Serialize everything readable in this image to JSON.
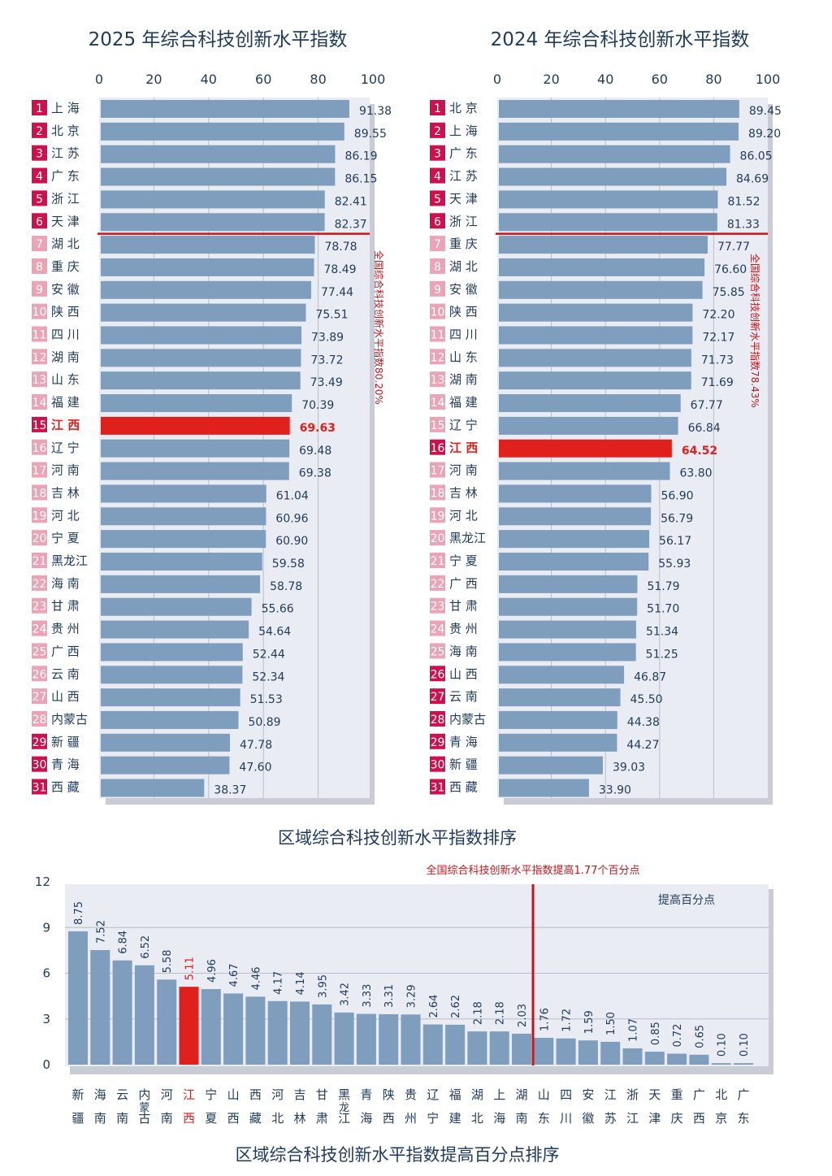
{
  "colors": {
    "bar": "#7f9dbd",
    "highlight": "#e0201c",
    "panel": "#e9ecf2",
    "rank_top": "#d0104c",
    "rank_mid": "#eda3b6",
    "text": "#1f3b5c",
    "redline": "#c4161c"
  },
  "chart_data": [
    {
      "type": "bar",
      "orientation": "horizontal",
      "title": "2025 年综合科技创新水平指数",
      "xlim": [
        0,
        100
      ],
      "xticks": [
        "0",
        "20",
        "40",
        "60",
        "80",
        "100"
      ],
      "ranks": [
        "1",
        "2",
        "3",
        "4",
        "5",
        "6",
        "7",
        "8",
        "9",
        "10",
        "11",
        "12",
        "13",
        "14",
        "15",
        "16",
        "17",
        "18",
        "19",
        "20",
        "21",
        "22",
        "23",
        "24",
        "25",
        "26",
        "27",
        "28",
        "29",
        "30",
        "31"
      ],
      "categories": [
        "上 海",
        "北 京",
        "江 苏",
        "广 东",
        "浙 江",
        "天 津",
        "湖 北",
        "重 庆",
        "安 徽",
        "陕 西",
        "四 川",
        "湖 南",
        "山 东",
        "福 建",
        "江 西",
        "辽 宁",
        "河 南",
        "吉 林",
        "河 北",
        "宁 夏",
        "黑龙江",
        "海 南",
        "甘 肃",
        "贵 州",
        "广 西",
        "云 南",
        "山 西",
        "内蒙古",
        "新 疆",
        "青 海",
        "西 藏"
      ],
      "values": [
        91.38,
        89.55,
        86.19,
        86.15,
        82.41,
        82.37,
        78.78,
        78.49,
        77.44,
        75.51,
        73.89,
        73.72,
        73.49,
        70.39,
        69.63,
        69.48,
        69.38,
        61.04,
        60.96,
        60.9,
        59.58,
        58.78,
        55.66,
        54.64,
        52.44,
        52.34,
        51.53,
        50.89,
        47.78,
        47.6,
        38.37
      ],
      "labels": [
        "91.38",
        "89.55",
        "86.19",
        "86.15",
        "82.41",
        "82.37",
        "78.78",
        "78.49",
        "77.44",
        "75.51",
        "73.89",
        "73.72",
        "73.49",
        "70.39",
        "69.63",
        "69.48",
        "69.38",
        "61.04",
        "60.96",
        "60.90",
        "59.58",
        "58.78",
        "55.66",
        "54.64",
        "52.44",
        "52.34",
        "51.53",
        "50.89",
        "47.78",
        "47.60",
        "38.37"
      ],
      "rank_style": [
        "top",
        "top",
        "top",
        "top",
        "top",
        "top",
        "mid",
        "mid",
        "mid",
        "mid",
        "mid",
        "mid",
        "mid",
        "mid",
        "top",
        "mid",
        "mid",
        "mid",
        "mid",
        "mid",
        "mid",
        "mid",
        "mid",
        "mid",
        "mid",
        "mid",
        "mid",
        "mid",
        "top",
        "top",
        "top"
      ],
      "highlight_index": 14,
      "separator_after": 6,
      "annotation": "全国综合科技创新水平指数80.20%"
    },
    {
      "type": "bar",
      "orientation": "horizontal",
      "title": "2024 年综合科技创新水平指数",
      "xlim": [
        0,
        100
      ],
      "xticks": [
        "0",
        "20",
        "40",
        "60",
        "80",
        "100"
      ],
      "ranks": [
        "1",
        "2",
        "3",
        "4",
        "5",
        "6",
        "7",
        "8",
        "9",
        "10",
        "11",
        "12",
        "13",
        "14",
        "15",
        "16",
        "17",
        "18",
        "19",
        "20",
        "21",
        "22",
        "23",
        "24",
        "25",
        "26",
        "27",
        "28",
        "29",
        "30",
        "31"
      ],
      "categories": [
        "北 京",
        "上 海",
        "广 东",
        "江 苏",
        "天 津",
        "浙 江",
        "重 庆",
        "湖 北",
        "安 徽",
        "陕 西",
        "四 川",
        "山 东",
        "湖 南",
        "福 建",
        "辽 宁",
        "江 西",
        "河 南",
        "吉 林",
        "河 北",
        "黑龙江",
        "宁 夏",
        "广 西",
        "甘 肃",
        "贵 州",
        "海 南",
        "山 西",
        "云 南",
        "内蒙古",
        "青 海",
        "新 疆",
        "西 藏"
      ],
      "values": [
        89.45,
        89.2,
        86.05,
        84.69,
        81.52,
        81.33,
        77.77,
        76.6,
        75.85,
        72.2,
        72.17,
        71.73,
        71.69,
        67.77,
        66.84,
        64.52,
        63.8,
        56.9,
        56.79,
        56.17,
        55.93,
        51.79,
        51.7,
        51.34,
        51.25,
        46.87,
        45.5,
        44.38,
        44.27,
        39.03,
        33.9
      ],
      "labels": [
        "89.45",
        "89.20",
        "86.05",
        "84.69",
        "81.52",
        "81.33",
        "77.77",
        "76.60",
        "75.85",
        "72.20",
        "72.17",
        "71.73",
        "71.69",
        "67.77",
        "66.84",
        "64.52",
        "63.80",
        "56.90",
        "56.79",
        "56.17",
        "55.93",
        "51.79",
        "51.70",
        "51.34",
        "51.25",
        "46.87",
        "45.50",
        "44.38",
        "44.27",
        "39.03",
        "33.90"
      ],
      "rank_style": [
        "top",
        "top",
        "top",
        "top",
        "top",
        "top",
        "mid",
        "mid",
        "mid",
        "mid",
        "mid",
        "mid",
        "mid",
        "mid",
        "mid",
        "top",
        "mid",
        "mid",
        "mid",
        "mid",
        "mid",
        "mid",
        "mid",
        "mid",
        "mid",
        "top",
        "top",
        "top",
        "top",
        "top",
        "top"
      ],
      "highlight_index": 15,
      "separator_after": 6,
      "annotation": "全国综合科技创新水平指数78.43%"
    },
    {
      "type": "bar",
      "orientation": "vertical",
      "title": "区域综合科技创新水平指数提高百分点排序",
      "ylim": [
        0,
        12
      ],
      "yticks": [
        "0",
        "3",
        "6",
        "9",
        "12"
      ],
      "yticks_values": [
        0,
        3,
        6,
        9,
        12
      ],
      "categories_top": [
        "新",
        "海",
        "云",
        "内",
        "河",
        "江",
        "宁",
        "山",
        "西",
        "河",
        "吉",
        "甘",
        "黑",
        "青",
        "陕",
        "贵",
        "辽",
        "福",
        "湖",
        "上",
        "湖",
        "山",
        "四",
        "安",
        "江",
        "浙",
        "天",
        "重",
        "广",
        "北",
        "广"
      ],
      "categories_mid": [
        "",
        "",
        "",
        "蒙",
        "",
        "",
        "",
        "",
        "",
        "",
        "",
        "",
        "龙",
        "",
        "",
        "",
        "",
        "",
        "",
        "",
        "",
        "",
        "",
        "",
        "",
        "",
        "",
        "",
        "",
        "",
        ""
      ],
      "categories_bottom": [
        "疆",
        "南",
        "南",
        "古",
        "南",
        "西",
        "夏",
        "西",
        "藏",
        "北",
        "林",
        "肃",
        "江",
        "海",
        "西",
        "州",
        "宁",
        "建",
        "北",
        "海",
        "南",
        "东",
        "川",
        "徽",
        "苏",
        "江",
        "津",
        "庆",
        "西",
        "京",
        "东"
      ],
      "values": [
        8.75,
        7.52,
        6.84,
        6.52,
        5.58,
        5.11,
        4.96,
        4.67,
        4.46,
        4.17,
        4.14,
        3.95,
        3.42,
        3.33,
        3.31,
        3.29,
        2.64,
        2.62,
        2.18,
        2.18,
        2.03,
        1.76,
        1.72,
        1.59,
        1.5,
        1.07,
        0.85,
        0.72,
        0.65,
        0.1,
        0.1
      ],
      "labels": [
        "8.75",
        "7.52",
        "6.84",
        "6.52",
        "5.58",
        "5.11",
        "4.96",
        "4.67",
        "4.46",
        "4.17",
        "4.14",
        "3.95",
        "3.42",
        "3.33",
        "3.31",
        "3.29",
        "2.64",
        "2.62",
        "2.18",
        "2.18",
        "2.03",
        "1.76",
        "1.72",
        "1.59",
        "1.50",
        "1.07",
        "0.85",
        "0.72",
        "0.65",
        "0.10",
        "0.10"
      ],
      "highlight_index": 5,
      "national_line_after_index": 20,
      "national_label": "全国综合科技创新水平指数提高1.77个百分点",
      "legend_label": "提高百分点"
    }
  ],
  "captions": {
    "ranking": "区域综合科技创新水平指数排序",
    "increase": "区域综合科技创新水平指数提高百分点排序"
  }
}
